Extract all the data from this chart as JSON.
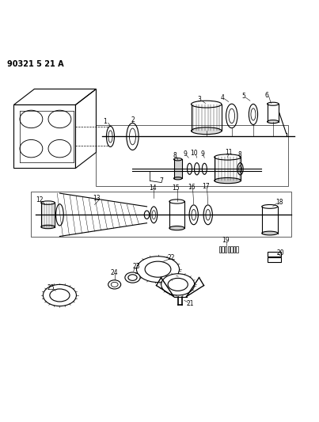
{
  "title": "90321 5 21 A",
  "bg_color": "#ffffff",
  "line_color": "#000000",
  "figsize": [
    4.03,
    5.33
  ],
  "dpi": 100
}
